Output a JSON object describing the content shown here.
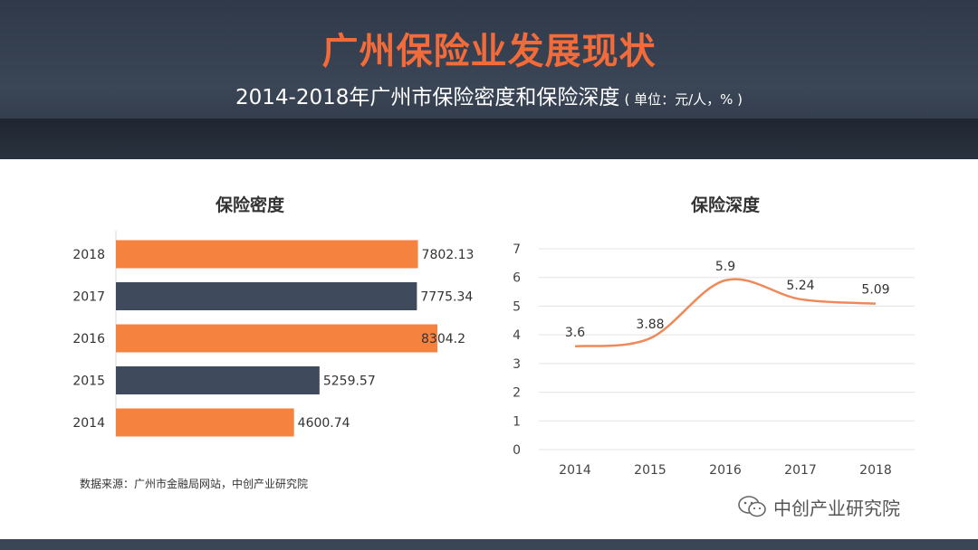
{
  "header": {
    "title": "广州保险业发展现状",
    "subtitle": "2014-2018年广州市保险密度和保险深度",
    "unit": "( 单位：元/人，% )"
  },
  "source_note": "数据来源：广州市金融局网站，中创产业研究院",
  "watermark": {
    "text": "中创产业研究院",
    "icon": "wechat-icon"
  },
  "colors": {
    "orange": "#f6823f",
    "slate": "#3f4b5c",
    "line": "#ee8a5a",
    "title": "#f26b3a"
  },
  "chart_data": [
    {
      "type": "bar",
      "orientation": "horizontal",
      "title": "保险密度",
      "categories": [
        "2018",
        "2017",
        "2016",
        "2015",
        "2014"
      ],
      "values": [
        7802.13,
        7775.34,
        8304.2,
        5259.57,
        4600.74
      ],
      "value_labels": [
        "7802.13",
        "7775.34",
        "8304.2",
        "5259.57",
        "4600.74"
      ],
      "bar_colors": [
        "#f6823f",
        "#3f4b5c",
        "#f6823f",
        "#3f4b5c",
        "#f6823f"
      ],
      "xlim": [
        0,
        9000
      ],
      "grid": false
    },
    {
      "type": "line",
      "title": "保险深度",
      "x": [
        "2014",
        "2015",
        "2016",
        "2017",
        "2018"
      ],
      "values": [
        3.6,
        3.88,
        5.9,
        5.24,
        5.09
      ],
      "value_labels": [
        "3.6",
        "3.88",
        "5.9",
        "5.24",
        "5.09"
      ],
      "yticks": [
        "0",
        "1",
        "2",
        "3",
        "4",
        "5",
        "6",
        "7"
      ],
      "ylim": [
        0,
        7
      ],
      "grid": true,
      "smooth": true
    }
  ]
}
